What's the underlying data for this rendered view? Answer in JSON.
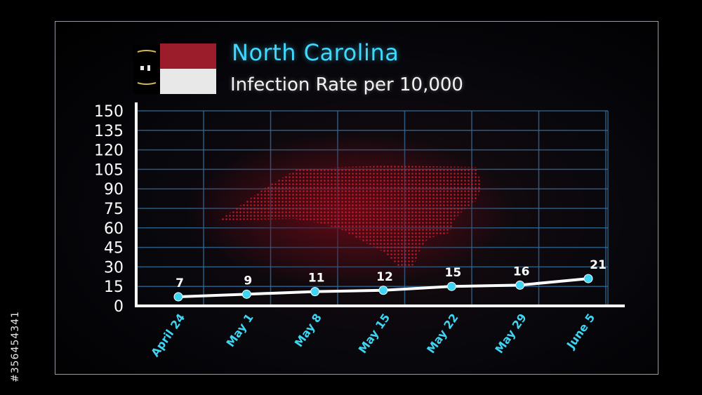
{
  "chart_data": {
    "type": "line",
    "title": "North Carolina",
    "subtitle": "Infection Rate per 10,000",
    "categories": [
      "April 24",
      "May 1",
      "May 8",
      "May 15",
      "May 22",
      "May 29",
      "June 5"
    ],
    "series": [
      {
        "values": [
          7,
          9,
          11,
          12,
          15,
          16,
          21
        ]
      }
    ],
    "y_ticks": [
      0,
      15,
      30,
      45,
      60,
      75,
      90,
      105,
      120,
      135,
      150
    ],
    "ylim": [
      0,
      150
    ],
    "grid": true,
    "colors": {
      "line": "#ffffff",
      "marker": "#3fd4f2",
      "x_labels": "#3fd4f2",
      "title": "#3fd9ff",
      "grid": "#2f6a96",
      "map": "#d0182b"
    }
  },
  "watermark": {
    "id_text": "#356454341"
  }
}
